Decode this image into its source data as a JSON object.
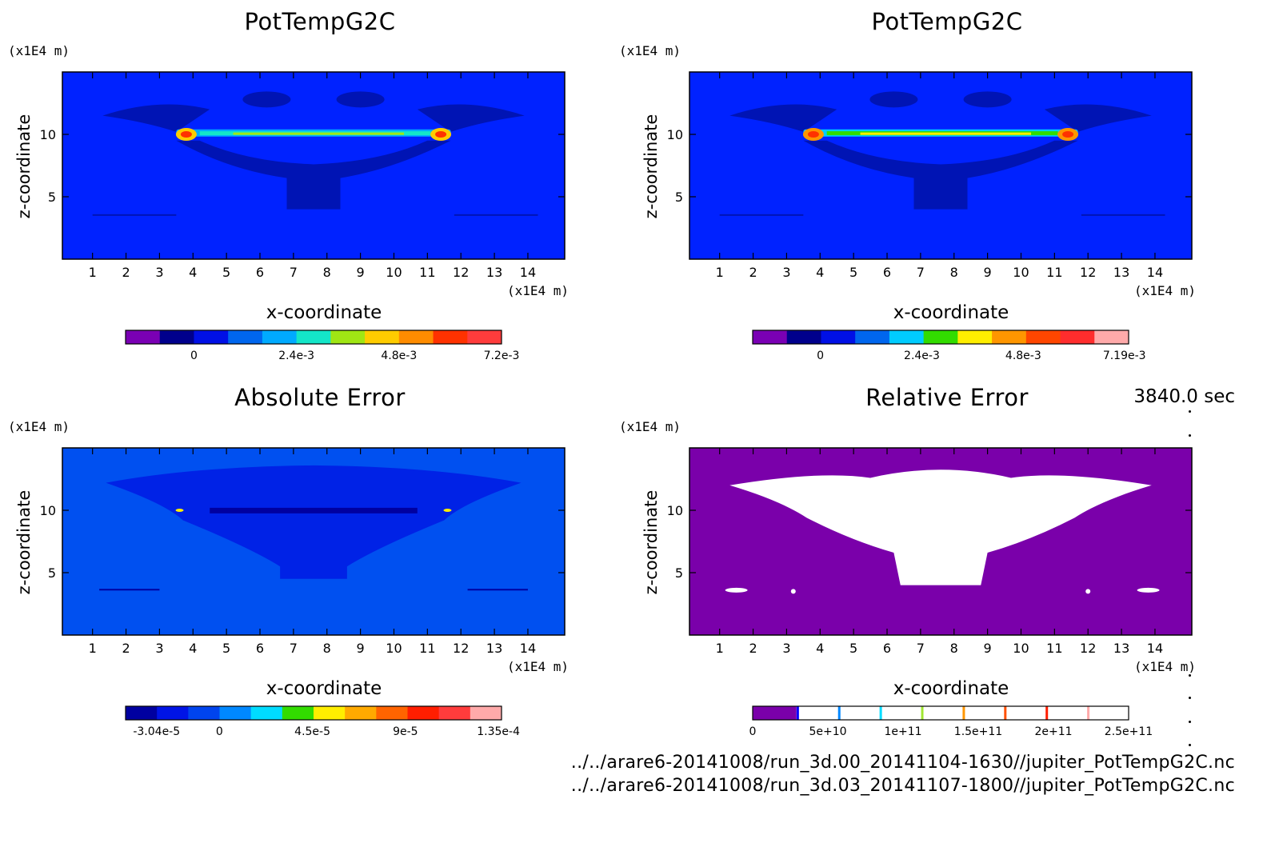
{
  "chart_data": [
    {
      "type": "heatmap",
      "title": "PotTempG2C",
      "xlabel": "x-coordinate",
      "ylabel": "z-coordinate",
      "x_unit": "(x1E4 m)",
      "y_unit": "(x1E4 m)",
      "xlim": [
        0.1,
        15.1
      ],
      "ylim": [
        0,
        15
      ],
      "x_ticks": [
        1,
        2,
        3,
        4,
        5,
        6,
        7,
        8,
        9,
        10,
        11,
        12,
        13,
        14
      ],
      "y_ticks": [
        5,
        10
      ],
      "background_color": "#0022ff",
      "colorbar": {
        "colors": [
          "#7a00b4",
          "#00008c",
          "#0010e6",
          "#0066ee",
          "#00aaff",
          "#14e6c8",
          "#a0e614",
          "#ffcc00",
          "#ff8c00",
          "#ff3200",
          "#ff3c3c"
        ],
        "tick_labels": [
          "0",
          "2.4e-3",
          "4.8e-3",
          "7.2e-3"
        ],
        "tick_values": [
          0,
          0.0024,
          0.0048,
          0.0072
        ]
      }
    },
    {
      "type": "heatmap",
      "title": "PotTempG2C",
      "xlabel": "x-coordinate",
      "ylabel": "z-coordinate",
      "x_unit": "(x1E4 m)",
      "y_unit": "(x1E4 m)",
      "xlim": [
        0.1,
        15.1
      ],
      "ylim": [
        0,
        15
      ],
      "x_ticks": [
        1,
        2,
        3,
        4,
        5,
        6,
        7,
        8,
        9,
        10,
        11,
        12,
        13,
        14
      ],
      "y_ticks": [
        5,
        10
      ],
      "background_color": "#0022ff",
      "colorbar": {
        "colors": [
          "#7a00b4",
          "#00008c",
          "#0010e6",
          "#0066ee",
          "#00ccff",
          "#32dc00",
          "#ffee00",
          "#ff9600",
          "#ff4600",
          "#ff2d2d",
          "#ffaaaa"
        ],
        "tick_labels": [
          "0",
          "2.4e-3",
          "4.8e-3",
          "7.19e-3"
        ],
        "tick_values": [
          0,
          0.0024,
          0.0048,
          0.00719
        ]
      }
    },
    {
      "type": "heatmap",
      "title": "Absolute Error",
      "xlabel": "x-coordinate",
      "ylabel": "z-coordinate",
      "x_unit": "(x1E4 m)",
      "y_unit": "(x1E4 m)",
      "xlim": [
        0.1,
        15.1
      ],
      "ylim": [
        0,
        15
      ],
      "x_ticks": [
        1,
        2,
        3,
        4,
        5,
        6,
        7,
        8,
        9,
        10,
        11,
        12,
        13,
        14
      ],
      "y_ticks": [
        5,
        10
      ],
      "background_color": "#0050f0",
      "colorbar": {
        "colors": [
          "#0000a0",
          "#0014e6",
          "#0044ee",
          "#0088ff",
          "#00dcff",
          "#32dc00",
          "#ffee00",
          "#ffaa00",
          "#ff6400",
          "#ff1e00",
          "#ff3c3c",
          "#ffaaaa"
        ],
        "tick_labels": [
          "-3.04e-5",
          "0",
          "4.5e-5",
          "9e-5",
          "1.35e-4"
        ],
        "tick_values": [
          -3.04e-05,
          0,
          4.5e-05,
          9e-05,
          0.000135
        ]
      }
    },
    {
      "type": "heatmap",
      "title": "Relative Error",
      "xlabel": "x-coordinate",
      "ylabel": "z-coordinate",
      "x_unit": "(x1E4 m)",
      "y_unit": "(x1E4 m)",
      "xlim": [
        0.1,
        15.1
      ],
      "ylim": [
        0,
        15
      ],
      "x_ticks": [
        1,
        2,
        3,
        4,
        5,
        6,
        7,
        8,
        9,
        10,
        11,
        12,
        13,
        14
      ],
      "y_ticks": [
        5,
        10
      ],
      "background_color": "#7a00aa",
      "colorbar": {
        "colors": [
          "#7a00aa",
          "#0000ff",
          "#0088ff",
          "#00dcff",
          "#a0e632",
          "#ff9600",
          "#ff5000",
          "#ff1e00",
          "#ffaaaa"
        ],
        "tick_labels": [
          "0",
          "5e+10",
          "1e+11",
          "1.5e+11",
          "2e+11",
          "2.5e+11"
        ],
        "tick_values": [
          0,
          50000000000,
          100000000000,
          150000000000,
          200000000000,
          250000000000
        ]
      }
    }
  ],
  "footer": {
    "time": "3840.0 sec",
    "file1": "../../arare6-20141008/run_3d.00_20141104-1630//jupiter_PotTempG2C.nc",
    "file2": "../../arare6-20141008/run_3d.03_20141107-1800//jupiter_PotTempG2C.nc"
  }
}
